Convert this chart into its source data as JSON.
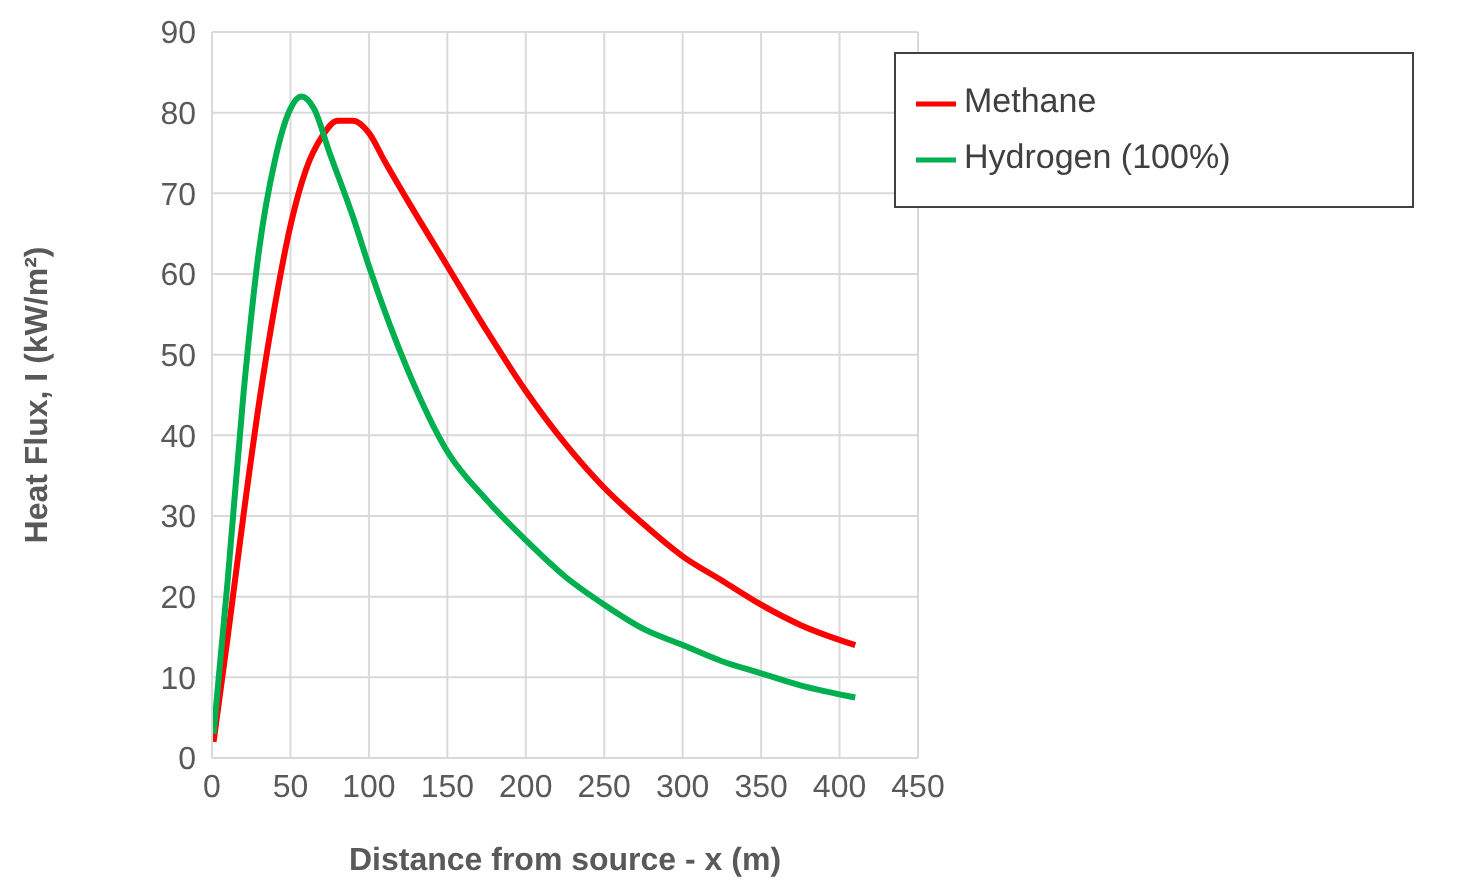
{
  "chart_data": {
    "type": "line",
    "xlabel": "Distance from source - x (m)",
    "ylabel": "Heat Flux, I (kW/m²)",
    "xlim": [
      0,
      450
    ],
    "xticks": [
      0,
      50,
      100,
      150,
      200,
      250,
      300,
      350,
      400,
      450
    ],
    "ylim": [
      0,
      90
    ],
    "yticks": [
      0,
      10,
      20,
      30,
      40,
      50,
      60,
      70,
      80,
      90
    ],
    "grid": true,
    "legend": "top right",
    "marker": "none",
    "line_style": "solid",
    "series": [
      {
        "name": "Methane",
        "color": "#ff0000",
        "x": [
          1,
          10,
          20,
          30,
          40,
          50,
          60,
          70,
          80,
          90,
          100,
          110,
          125,
          150,
          175,
          200,
          225,
          250,
          275,
          300,
          325,
          350,
          375,
          410
        ],
        "values": [
          2,
          15,
          30,
          44,
          56,
          66,
          73,
          77,
          79,
          79,
          77.5,
          74,
          69,
          61,
          53,
          45.5,
          39,
          33.5,
          29,
          25,
          22,
          19,
          16.5,
          14
        ]
      },
      {
        "name": "Hydrogen (100%)",
        "color": "#00b050",
        "x": [
          1,
          10,
          20,
          30,
          40,
          50,
          57,
          65,
          75,
          90,
          100,
          125,
          150,
          175,
          200,
          225,
          250,
          275,
          300,
          325,
          350,
          375,
          410
        ],
        "values": [
          3,
          22,
          45,
          63,
          74,
          80.5,
          82,
          80.5,
          75,
          67,
          61,
          48,
          38,
          32,
          27,
          22.5,
          19,
          16,
          14,
          12,
          10.5,
          9,
          7.5
        ]
      }
    ]
  }
}
